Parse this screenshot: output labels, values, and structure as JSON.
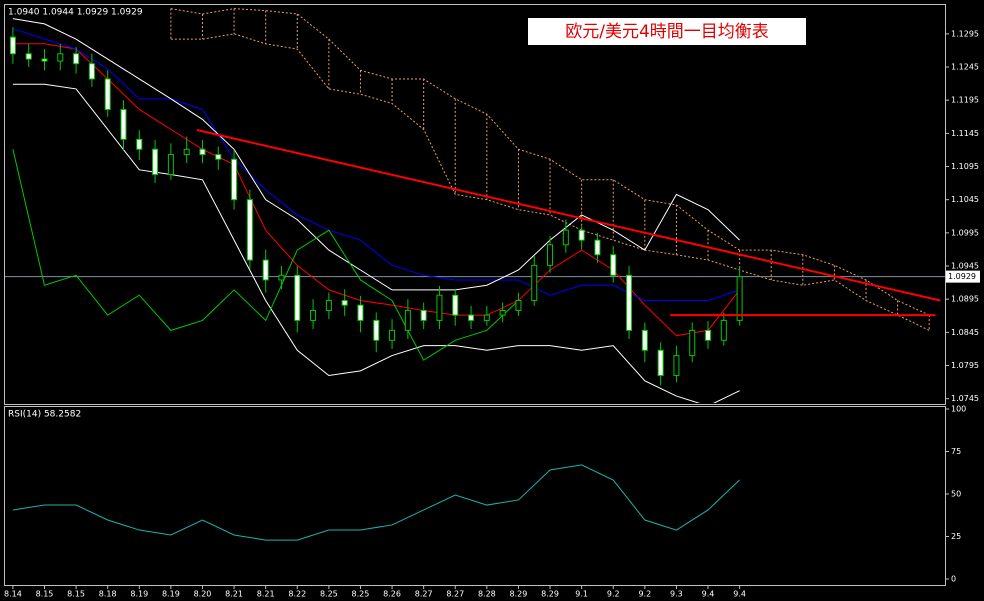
{
  "chart_data": [
    {
      "type": "candlestick",
      "title": "欧元/美元4時間一目均衡表",
      "info": "1.0940 1.0944 1.0929 1.0929",
      "xlim": [
        -0.5,
        59
      ],
      "xticks": [
        {
          "value": 0,
          "label": "8.14"
        },
        {
          "value": 2,
          "label": "8.15"
        },
        {
          "value": 4,
          "label": "8.15"
        },
        {
          "value": 6,
          "label": "8.18"
        },
        {
          "value": 8,
          "label": "8.19"
        },
        {
          "value": 10,
          "label": "8.19"
        },
        {
          "value": 12,
          "label": "8.20"
        },
        {
          "value": 14,
          "label": "8.21"
        },
        {
          "value": 16,
          "label": "8.21"
        },
        {
          "value": 18,
          "label": "8.22"
        },
        {
          "value": 20,
          "label": "8.25"
        },
        {
          "value": 22,
          "label": "8.25"
        },
        {
          "value": 24,
          "label": "8.26"
        },
        {
          "value": 26,
          "label": "8.27"
        },
        {
          "value": 28,
          "label": "8.27"
        },
        {
          "value": 30,
          "label": "8.28"
        },
        {
          "value": 32,
          "label": "8.29"
        },
        {
          "value": 34,
          "label": "8.29"
        },
        {
          "value": 36,
          "label": "9.1"
        },
        {
          "value": 38,
          "label": "9.2"
        },
        {
          "value": 40,
          "label": "9.2"
        },
        {
          "value": 42,
          "label": "9.3"
        },
        {
          "value": 44,
          "label": "9.4"
        },
        {
          "value": 46,
          "label": "9.4"
        }
      ],
      "ylim": [
        1.0737,
        1.134
      ],
      "yticks": [
        1.1295,
        1.1245,
        1.1195,
        1.1145,
        1.1095,
        1.1045,
        1.0995,
        1.0945,
        1.0895,
        1.0845,
        1.0795,
        1.0745
      ],
      "color": "#00c800",
      "open": [
        1.129,
        1.1265,
        1.1257,
        1.1254,
        1.1265,
        1.125,
        1.1227,
        1.1181,
        1.1136,
        1.1121,
        1.1083,
        1.1113,
        1.1121,
        1.1113,
        1.1106,
        1.1045,
        1.0954,
        1.0924,
        1.0931,
        1.0863,
        1.0878,
        1.0893,
        1.0886,
        1.0863,
        1.0833,
        1.0848,
        1.0878,
        1.0863,
        1.0901,
        1.0871,
        1.0863,
        1.0871,
        1.0878,
        1.0893,
        1.0946,
        1.0977,
        1.0999,
        1.0984,
        1.0962,
        1.0931,
        1.0848,
        1.0818,
        1.078,
        1.081,
        1.0848,
        1.0833,
        1.0863
      ],
      "high": [
        1.1305,
        1.128,
        1.1272,
        1.128,
        1.1275,
        1.1265,
        1.124,
        1.1195,
        1.115,
        1.1135,
        1.113,
        1.114,
        1.1135,
        1.1125,
        1.112,
        1.106,
        1.097,
        1.0945,
        1.0945,
        1.0895,
        1.0905,
        1.091,
        1.09,
        1.0875,
        1.0865,
        1.0895,
        1.089,
        1.0915,
        1.091,
        1.0885,
        1.0885,
        1.089,
        1.0905,
        1.096,
        1.099,
        1.1015,
        1.1005,
        1.0995,
        1.0975,
        1.0945,
        1.086,
        1.083,
        1.0825,
        1.086,
        1.0862,
        1.0875,
        1.0944
      ],
      "low": [
        1.125,
        1.1245,
        1.124,
        1.124,
        1.1235,
        1.1215,
        1.117,
        1.112,
        1.1105,
        1.107,
        1.1075,
        1.11,
        1.11,
        1.109,
        1.103,
        1.094,
        1.0905,
        1.091,
        1.0845,
        1.085,
        1.0865,
        1.087,
        1.0845,
        1.0815,
        1.082,
        1.0835,
        1.085,
        1.085,
        1.0855,
        1.085,
        1.0855,
        1.086,
        1.087,
        1.0885,
        1.0935,
        1.0965,
        1.097,
        1.095,
        1.092,
        1.0835,
        1.08,
        1.0765,
        1.077,
        1.08,
        1.082,
        1.0825,
        1.0855
      ],
      "close": [
        1.1265,
        1.1257,
        1.1254,
        1.1265,
        1.125,
        1.1227,
        1.1181,
        1.1136,
        1.1121,
        1.1083,
        1.1113,
        1.1121,
        1.1113,
        1.1106,
        1.1045,
        1.0954,
        1.0924,
        1.0931,
        1.0863,
        1.0878,
        1.0893,
        1.0886,
        1.0863,
        1.0833,
        1.0848,
        1.0878,
        1.0863,
        1.0901,
        1.0871,
        1.0863,
        1.0871,
        1.0878,
        1.0893,
        1.0946,
        1.0977,
        1.0999,
        1.0984,
        1.0962,
        1.0931,
        1.0848,
        1.0818,
        1.078,
        1.081,
        1.0848,
        1.0833,
        1.0863,
        1.0929
      ],
      "line_x": [
        0,
        2,
        4,
        6,
        8,
        10,
        12,
        14,
        16,
        18,
        20,
        22,
        24,
        26,
        28,
        30,
        32,
        34,
        36,
        38,
        40,
        42,
        44,
        46
      ],
      "lines": [
        {
          "color": "#ff0000",
          "values": [
            1.128,
            1.128,
            1.1272,
            1.1227,
            1.1181,
            1.1151,
            1.1121,
            1.1098,
            1.0999,
            1.0946,
            1.0909,
            1.0893,
            1.0886,
            1.0878,
            1.0871,
            1.0871,
            1.0893,
            1.0939,
            1.0969,
            1.0939,
            1.0886,
            1.084,
            1.0848,
            1.0909
          ]
        },
        {
          "color": "#0000ff",
          "values": [
            1.1303,
            1.1287,
            1.1272,
            1.1242,
            1.1197,
            1.1197,
            1.1181,
            1.1106,
            1.106,
            1.1022,
            1.0999,
            1.0984,
            1.0946,
            1.0931,
            1.0924,
            1.0924,
            1.0924,
            1.0901,
            1.0916,
            1.0916,
            1.0893,
            1.0893,
            1.0893,
            1.0909
          ]
        },
        {
          "color": "#ffffff",
          "values": [
            1.1318,
            1.131,
            1.1287,
            1.1257,
            1.1227,
            1.1197,
            1.1166,
            1.1121,
            1.1045,
            1.1015,
            1.0969,
            1.0939,
            1.0909,
            1.0909,
            1.0909,
            1.0916,
            1.0939,
            1.0984,
            1.1022,
            1.0999,
            1.0969,
            1.1053,
            1.103,
            1.0984
          ]
        },
        {
          "color": "#ffffff",
          "values": [
            1.1219,
            1.1219,
            1.1212,
            1.1151,
            1.109,
            1.1083,
            1.1075,
            1.0984,
            1.0893,
            1.0818,
            1.078,
            1.0787,
            1.081,
            1.0825,
            1.0825,
            1.0818,
            1.0825,
            1.0825,
            1.0818,
            1.0825,
            1.0772,
            1.0749,
            1.0734,
            1.0757
          ]
        },
        {
          "color": "#00c800",
          "values": [
            1.1121,
            1.0916,
            1.0931,
            1.0871,
            1.0901,
            1.0848,
            1.0863,
            1.0909,
            1.0863,
            1.0969,
            1.0999,
            1.0924,
            1.0893,
            1.0803,
            1.0833,
            1.0848,
            1.0893,
            null,
            null,
            null,
            null,
            null,
            null,
            null
          ]
        }
      ],
      "cloud": {
        "color": "#e8a060",
        "x": [
          10,
          12,
          14,
          16,
          18,
          20,
          22,
          24,
          26,
          28,
          30,
          32,
          34,
          36,
          38,
          40,
          42,
          44,
          46,
          48,
          50,
          52,
          54,
          56,
          58
        ],
        "span_a": [
          1.1333,
          1.1325,
          1.1333,
          1.133,
          1.1325,
          1.1287,
          1.124,
          1.1227,
          1.1227,
          1.1197,
          1.1174,
          1.1121,
          1.1106,
          1.1075,
          1.1075,
          1.1045,
          1.1037,
          1.0999,
          1.0969,
          1.0969,
          1.0962,
          1.0946,
          1.0924,
          1.0893,
          1.0871
        ],
        "span_b": [
          1.1287,
          1.1287,
          1.1295,
          1.128,
          1.1272,
          1.1212,
          1.1204,
          1.119,
          1.1151,
          1.1053,
          1.1045,
          1.103,
          1.1022,
          1.0999,
          1.0984,
          1.0969,
          1.0962,
          1.0954,
          1.0939,
          1.0924,
          1.0916,
          1.0924,
          1.0893,
          1.0871,
          1.0848
        ]
      },
      "trend_lines": [
        {
          "color": "#ff0000",
          "x": [
            11.65,
            58.7
          ],
          "y": [
            1.115,
            1.0893
          ]
        },
        {
          "color": "#ff0000",
          "x": [
            41.6,
            58.4
          ],
          "y": [
            1.0871,
            1.0871
          ]
        }
      ],
      "current_price": 1.0929
    },
    {
      "type": "line",
      "label": "RSI(14) 58.2582",
      "ylim": [
        0,
        100
      ],
      "yticks": [
        100,
        75,
        50,
        25,
        0
      ],
      "color": "#20b2aa",
      "x": [
        0,
        2,
        4,
        6,
        8,
        10,
        12,
        14,
        16,
        18,
        20,
        22,
        24,
        26,
        28,
        30,
        32,
        34,
        36,
        38,
        40,
        42,
        44,
        46
      ],
      "values": [
        40.6,
        43.5,
        43.5,
        34.7,
        28.8,
        25.9,
        34.7,
        25.9,
        22.9,
        22.9,
        28.8,
        28.8,
        31.8,
        40.6,
        49.4,
        43.5,
        46.5,
        64.1,
        67.1,
        58.2,
        34.7,
        28.8,
        40.6,
        58.3
      ]
    }
  ]
}
